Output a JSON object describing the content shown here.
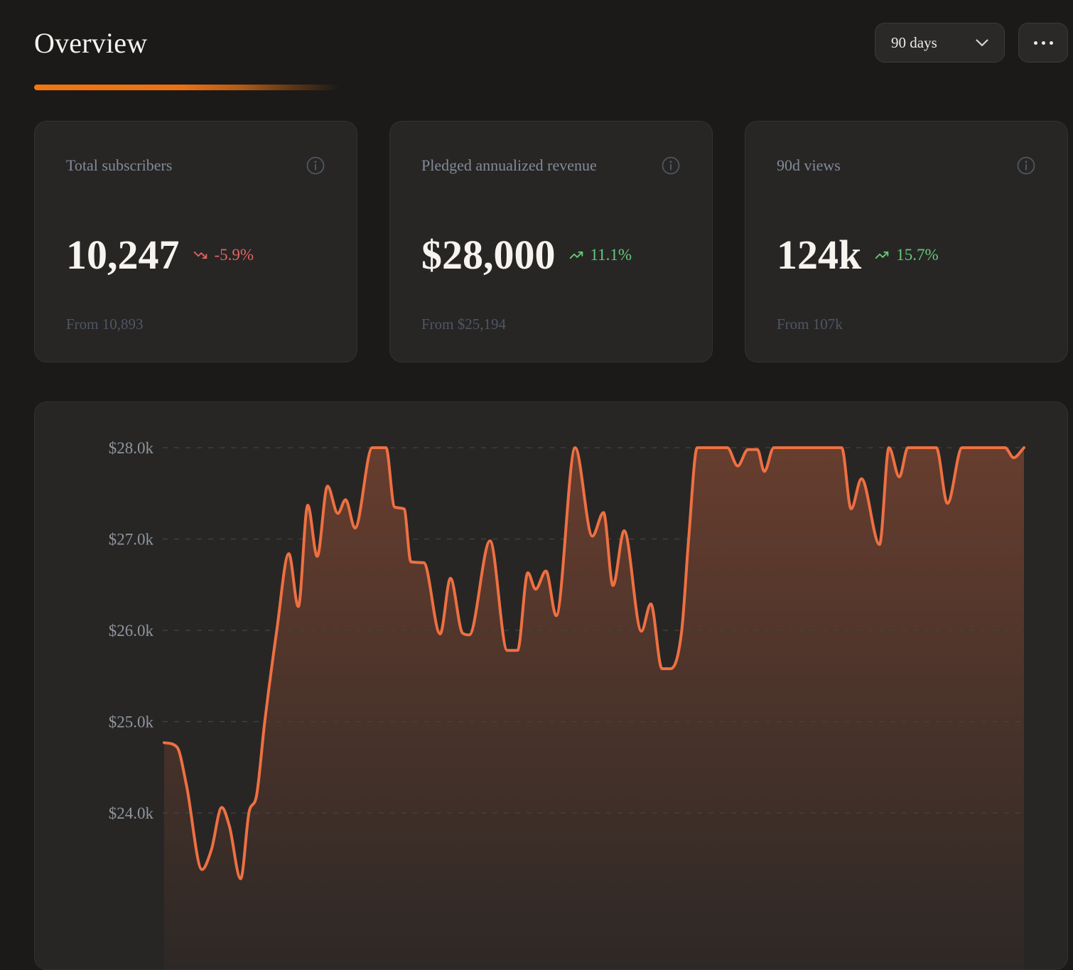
{
  "header": {
    "title": "Overview",
    "range_label": "90 days"
  },
  "cards": [
    {
      "title": "Total subscribers",
      "value": "10,247",
      "trend": "-5.9%",
      "trend_direction": "down",
      "footnote": "From 10,893"
    },
    {
      "title": "Pledged annualized revenue",
      "value": "$28,000",
      "trend": "11.1%",
      "trend_direction": "up",
      "footnote": "From $25,194"
    },
    {
      "title": "90d views",
      "value": "124k",
      "trend": "15.7%",
      "trend_direction": "up",
      "footnote": "From 107k"
    }
  ],
  "colors": {
    "page_bg": "#1b1a19",
    "card_bg": "#272625",
    "accent_orange": "#f1770e",
    "chart_line": "#ee7042",
    "trend_up": "#66c97b",
    "trend_down": "#e16464",
    "muted_text": "#838a98",
    "faint_text": "#4f5663"
  },
  "chart_data": {
    "type": "area",
    "title": "Pledged annualized revenue, last 90 days",
    "x_unit": "percent of 90-day range",
    "y_unit": "USD thousands",
    "ylim": [
      23.2,
      28.0
    ],
    "grid": "dashed horizontal",
    "legend": "none",
    "yticks": [
      {
        "label": "$28.0k",
        "value": 28
      },
      {
        "label": "$27.0k",
        "value": 27
      },
      {
        "label": "$26.0k",
        "value": 26
      },
      {
        "label": "$25.0k",
        "value": 25
      },
      {
        "label": "$24.0k",
        "value": 24
      }
    ],
    "points": [
      [
        0,
        24.77
      ],
      [
        1.5,
        24.72
      ],
      [
        2.6,
        24.3
      ],
      [
        4.4,
        23.38
      ],
      [
        5.5,
        23.6
      ],
      [
        6.7,
        24.06
      ],
      [
        7.6,
        23.85
      ],
      [
        8.9,
        23.28
      ],
      [
        9.9,
        24.02
      ],
      [
        10.7,
        24.17
      ],
      [
        11.7,
        25.0
      ],
      [
        13.1,
        26.0
      ],
      [
        14.5,
        26.84
      ],
      [
        15.6,
        26.26
      ],
      [
        16.7,
        27.37
      ],
      [
        17.8,
        26.81
      ],
      [
        19.0,
        27.58
      ],
      [
        20.2,
        27.28
      ],
      [
        21.1,
        27.43
      ],
      [
        22.2,
        27.12
      ],
      [
        24.2,
        28.0
      ],
      [
        25.8,
        28.0
      ],
      [
        26.8,
        27.35
      ],
      [
        27.9,
        27.33
      ],
      [
        28.7,
        26.75
      ],
      [
        30.2,
        26.74
      ],
      [
        32.1,
        25.96
      ],
      [
        33.3,
        26.57
      ],
      [
        34.7,
        25.97
      ],
      [
        35.5,
        25.95
      ],
      [
        37.9,
        26.98
      ],
      [
        39.9,
        25.78
      ],
      [
        41.1,
        25.78
      ],
      [
        42.3,
        26.63
      ],
      [
        43.2,
        26.45
      ],
      [
        44.4,
        26.65
      ],
      [
        45.6,
        26.16
      ],
      [
        47.8,
        28.0
      ],
      [
        49.8,
        27.03
      ],
      [
        51.1,
        27.29
      ],
      [
        52.2,
        26.49
      ],
      [
        53.5,
        27.09
      ],
      [
        55.5,
        25.99
      ],
      [
        56.6,
        26.29
      ],
      [
        57.9,
        25.58
      ],
      [
        58.9,
        25.58
      ],
      [
        60.2,
        26.0
      ],
      [
        61.0,
        27.0
      ],
      [
        62.0,
        28.0
      ],
      [
        65.5,
        28.0
      ],
      [
        66.7,
        27.8
      ],
      [
        67.9,
        27.98
      ],
      [
        69.0,
        27.98
      ],
      [
        69.8,
        27.74
      ],
      [
        70.9,
        28.0
      ],
      [
        78.8,
        28.0
      ],
      [
        79.9,
        27.33
      ],
      [
        81.1,
        27.66
      ],
      [
        83.2,
        26.94
      ],
      [
        84.3,
        28.0
      ],
      [
        85.5,
        27.68
      ],
      [
        86.5,
        28.0
      ],
      [
        89.8,
        28.0
      ],
      [
        91.1,
        27.39
      ],
      [
        92.8,
        28.0
      ],
      [
        97.8,
        28.0
      ],
      [
        98.8,
        27.89
      ],
      [
        100,
        28.0
      ]
    ]
  }
}
